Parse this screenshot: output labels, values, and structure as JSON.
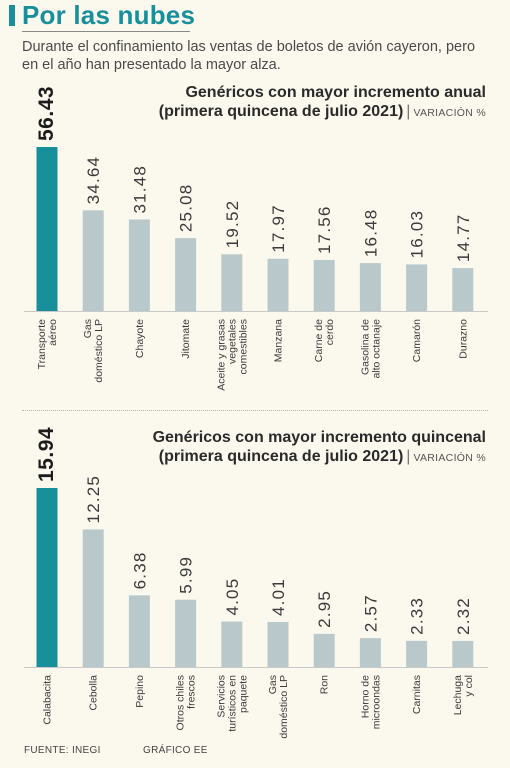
{
  "header": {
    "title": "Por las nubes",
    "subtitle": "Durante el confinamiento las ventas de boletos de avión cayeron, pero en el año han presentado la mayor alza."
  },
  "colors": {
    "accent": "#1a8f9c",
    "bar": "#b9c9cb",
    "highlight": "#1a8f9c"
  },
  "chart_data": [
    {
      "type": "bar",
      "title_line1": "Genéricos con mayor incremento anual",
      "title_line2": "(primera quincena de julio 2021)",
      "ylabel": "VARIACIÓN %",
      "categories": [
        "Transporte aéreo",
        "Gas doméstico LP",
        "Chayote",
        "Jitomate",
        "Aceite y grasas vegetales comestibles",
        "Manzana",
        "Carne de cerdo",
        "Gasolina de alto octanaje",
        "Camarón",
        "Durazno"
      ],
      "values": [
        56.43,
        34.64,
        31.48,
        25.08,
        19.52,
        17.97,
        17.56,
        16.48,
        16.03,
        14.77
      ],
      "value_labels": [
        "56.43",
        "34.64",
        "31.48",
        "25.08",
        "19.52",
        "17.97",
        "17.56",
        "16.48",
        "16.03",
        "14.77"
      ],
      "highlight_index": 0
    },
    {
      "type": "bar",
      "title_line1": "Genéricos con mayor incremento quincenal",
      "title_line2": "(primera quincena de julio 2021)",
      "ylabel": "VARIACIÓN %",
      "categories": [
        "Calabacita",
        "Cebolla",
        "Pepino",
        "Otros chiles frescos",
        "Servicios turísticos en paquete",
        "Gas doméstico LP",
        "Ron",
        "Horno de microondas",
        "Carnitas",
        "Lechuga y col"
      ],
      "values": [
        15.94,
        12.25,
        6.38,
        5.99,
        4.05,
        4.01,
        2.95,
        2.57,
        2.33,
        2.32
      ],
      "value_labels": [
        "15.94",
        "12.25",
        "6.38",
        "5.99",
        "4.05",
        "4.01",
        "2.95",
        "2.57",
        "2.33",
        "2.32"
      ],
      "highlight_index": 0
    }
  ],
  "footer": {
    "source": "FUENTE: INEGI",
    "credit": "GRÁFICO EE"
  }
}
